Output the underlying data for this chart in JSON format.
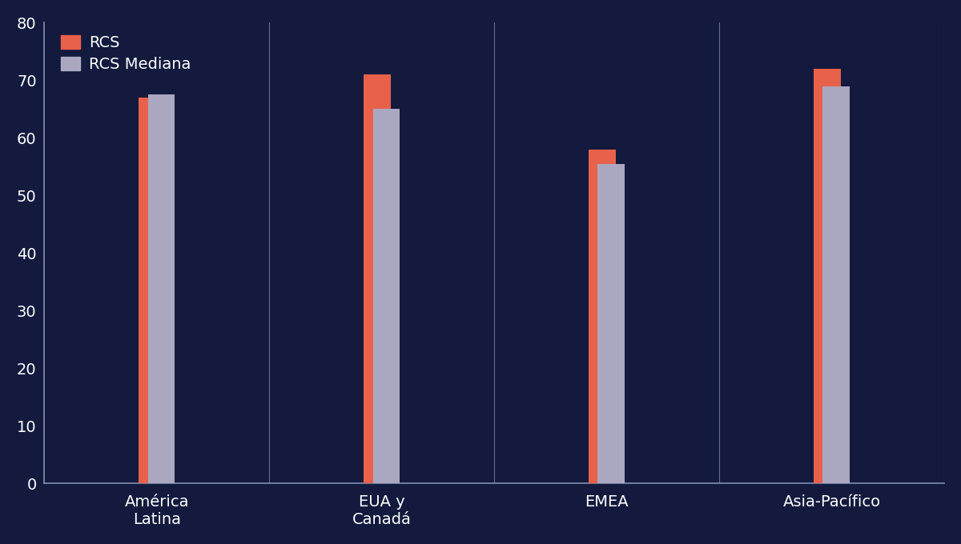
{
  "categories": [
    "América\nLatina",
    "EUA y\nCanadá",
    "EMEA",
    "Asia-Pacífico"
  ],
  "rcs_values": [
    67,
    71,
    58,
    72
  ],
  "rcs_mediana_values": [
    67.5,
    65,
    55.5,
    69
  ],
  "rcs_color": "#E8614A",
  "mediana_color": "#A9A8C0",
  "background_color": "#131A3E",
  "text_color": "#FFFFFF",
  "ylim": [
    0,
    80
  ],
  "yticks": [
    0,
    10,
    20,
    30,
    40,
    50,
    60,
    70,
    80
  ],
  "bar_width": 0.12,
  "bar_gap": 0.04,
  "legend_labels": [
    "RCS",
    "RCS Mediana"
  ],
  "tick_fontsize": 14,
  "legend_fontsize": 14,
  "spine_color": "#8090B0",
  "separator_color": "#8090B0"
}
